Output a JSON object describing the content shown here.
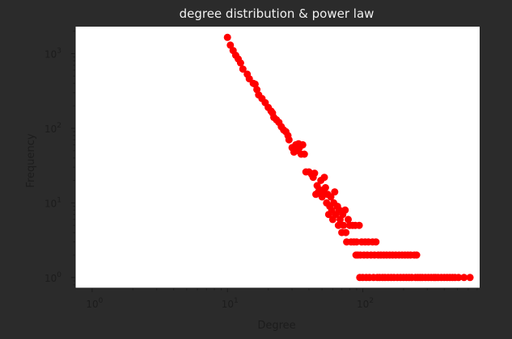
{
  "chart_data": {
    "type": "scatter",
    "title": "degree distribution & power law",
    "xlabel": "Degree",
    "ylabel": "Frequency",
    "xscale": "log",
    "yscale": "log",
    "xlim": [
      0.75,
      730
    ],
    "ylim": [
      0.72,
      2300
    ],
    "grid": false,
    "legend": "none",
    "colors": {
      "marker": "#ff0000",
      "background": "#2b2b2b",
      "plot_bg": "#ffffff",
      "text": "#1c1c1c",
      "title": "#f0f0f0"
    },
    "x_ticks": [
      {
        "value": 1,
        "label": "10^0"
      },
      {
        "value": 10,
        "label": "10^1"
      },
      {
        "value": 100,
        "label": "10^2"
      }
    ],
    "y_ticks": [
      {
        "value": 1,
        "label": "10^0"
      },
      {
        "value": 10,
        "label": "10^1"
      },
      {
        "value": 100,
        "label": "10^2"
      },
      {
        "value": 1000,
        "label": "10^3"
      }
    ],
    "points": [
      [
        10,
        1650
      ],
      [
        10.5,
        1300
      ],
      [
        11,
        1100
      ],
      [
        11.5,
        950
      ],
      [
        12,
        850
      ],
      [
        12.5,
        750
      ],
      [
        13,
        620
      ],
      [
        14,
        530
      ],
      [
        14.5,
        460
      ],
      [
        15.5,
        400
      ],
      [
        16,
        390
      ],
      [
        16.5,
        330
      ],
      [
        17,
        280
      ],
      [
        18,
        250
      ],
      [
        19,
        220
      ],
      [
        20,
        190
      ],
      [
        21,
        170
      ],
      [
        21.5,
        160
      ],
      [
        22,
        140
      ],
      [
        23,
        130
      ],
      [
        24,
        120
      ],
      [
        25,
        105
      ],
      [
        26,
        95
      ],
      [
        27,
        90
      ],
      [
        28,
        80
      ],
      [
        28.5,
        70
      ],
      [
        30,
        55
      ],
      [
        31,
        48
      ],
      [
        32,
        60
      ],
      [
        33,
        50
      ],
      [
        33.5,
        62
      ],
      [
        34,
        55
      ],
      [
        35,
        45
      ],
      [
        36,
        60
      ],
      [
        37,
        45
      ],
      [
        38,
        26
      ],
      [
        40,
        26
      ],
      [
        42,
        24
      ],
      [
        43,
        22
      ],
      [
        44,
        25
      ],
      [
        45,
        13
      ],
      [
        46,
        17
      ],
      [
        47,
        14
      ],
      [
        48,
        15
      ],
      [
        49,
        20
      ],
      [
        50,
        12
      ],
      [
        51,
        14
      ],
      [
        52,
        22
      ],
      [
        53,
        16
      ],
      [
        54,
        10
      ],
      [
        55,
        13
      ],
      [
        56,
        7
      ],
      [
        57,
        9
      ],
      [
        58,
        12
      ],
      [
        59,
        8
      ],
      [
        60,
        6
      ],
      [
        61,
        10
      ],
      [
        62,
        14
      ],
      [
        63,
        7
      ],
      [
        65,
        9
      ],
      [
        66,
        5
      ],
      [
        67,
        8
      ],
      [
        68,
        6
      ],
      [
        70,
        4
      ],
      [
        71,
        7
      ],
      [
        72,
        5
      ],
      [
        74,
        8
      ],
      [
        75,
        4
      ],
      [
        76,
        3
      ],
      [
        78,
        6
      ],
      [
        80,
        5
      ],
      [
        82,
        3
      ],
      [
        84,
        5
      ],
      [
        86,
        3
      ],
      [
        88,
        5
      ],
      [
        89,
        2
      ],
      [
        90,
        3
      ],
      [
        92,
        2
      ],
      [
        94,
        5
      ],
      [
        95,
        1
      ],
      [
        96,
        2
      ],
      [
        98,
        3
      ],
      [
        100,
        1
      ],
      [
        102,
        2
      ],
      [
        104,
        3
      ],
      [
        106,
        1
      ],
      [
        108,
        2
      ],
      [
        110,
        3
      ],
      [
        112,
        1
      ],
      [
        115,
        2
      ],
      [
        118,
        3
      ],
      [
        120,
        1
      ],
      [
        122,
        2
      ],
      [
        125,
        3
      ],
      [
        128,
        1
      ],
      [
        130,
        2
      ],
      [
        133,
        1
      ],
      [
        136,
        2
      ],
      [
        140,
        1
      ],
      [
        143,
        2
      ],
      [
        146,
        1
      ],
      [
        150,
        2
      ],
      [
        154,
        1
      ],
      [
        158,
        2
      ],
      [
        162,
        1
      ],
      [
        166,
        2
      ],
      [
        170,
        1
      ],
      [
        175,
        2
      ],
      [
        180,
        1
      ],
      [
        185,
        2
      ],
      [
        190,
        1
      ],
      [
        195,
        2
      ],
      [
        200,
        1
      ],
      [
        205,
        2
      ],
      [
        210,
        1
      ],
      [
        215,
        2
      ],
      [
        220,
        1
      ],
      [
        225,
        2
      ],
      [
        230,
        1
      ],
      [
        240,
        2
      ],
      [
        245,
        1
      ],
      [
        250,
        2
      ],
      [
        255,
        1
      ],
      [
        265,
        1
      ],
      [
        275,
        1
      ],
      [
        290,
        1
      ],
      [
        305,
        1
      ],
      [
        320,
        1
      ],
      [
        335,
        1
      ],
      [
        345,
        1
      ],
      [
        360,
        1
      ],
      [
        380,
        1
      ],
      [
        400,
        1
      ],
      [
        420,
        1
      ],
      [
        440,
        1
      ],
      [
        460,
        1
      ],
      [
        480,
        1
      ],
      [
        510,
        1
      ],
      [
        560,
        1
      ],
      [
        620,
        1
      ]
    ]
  }
}
